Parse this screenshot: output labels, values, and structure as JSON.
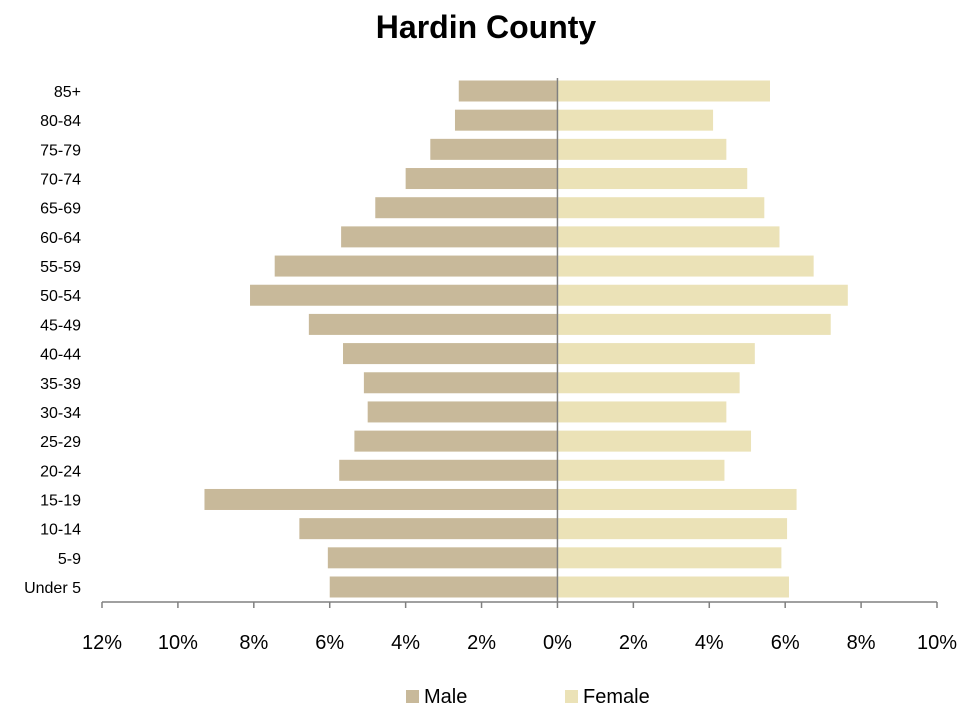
{
  "chart_data": {
    "type": "bar",
    "orientation": "horizontal",
    "title": "Hardin County",
    "xlabel": "",
    "ylabel": "",
    "categories": [
      "Under 5",
      "5-9",
      "10-14",
      "15-19",
      "20-24",
      "25-29",
      "30-34",
      "35-39",
      "40-44",
      "45-49",
      "50-54",
      "55-59",
      "60-64",
      "65-69",
      "70-74",
      "75-79",
      "80-84",
      "85+"
    ],
    "series": [
      {
        "name": "Male",
        "color": "#c8b99a",
        "values": [
          -6.0,
          -6.05,
          -6.8,
          -9.3,
          -5.75,
          -5.35,
          -5.0,
          -5.1,
          -5.65,
          -6.55,
          -8.1,
          -7.45,
          -5.7,
          -4.8,
          -4.0,
          -3.35,
          -2.7,
          -2.6
        ]
      },
      {
        "name": "Female",
        "color": "#ebe2b7",
        "values": [
          6.1,
          5.9,
          6.05,
          6.3,
          4.4,
          5.1,
          4.45,
          4.8,
          5.2,
          7.2,
          7.65,
          6.75,
          5.85,
          5.45,
          5.0,
          4.45,
          4.1,
          5.6
        ]
      }
    ],
    "xlim": [
      -12,
      10
    ],
    "xticks": [
      -12,
      -10,
      -8,
      -6,
      -4,
      -2,
      0,
      2,
      4,
      6,
      8,
      10
    ],
    "xtick_labels": [
      "12%",
      "10%",
      "8%",
      "6%",
      "4%",
      "2%",
      "0%",
      "2%",
      "4%",
      "6%",
      "8%",
      "10%"
    ],
    "grid": false,
    "legend": {
      "position": "bottom",
      "entries": [
        "Male",
        "Female"
      ]
    }
  }
}
